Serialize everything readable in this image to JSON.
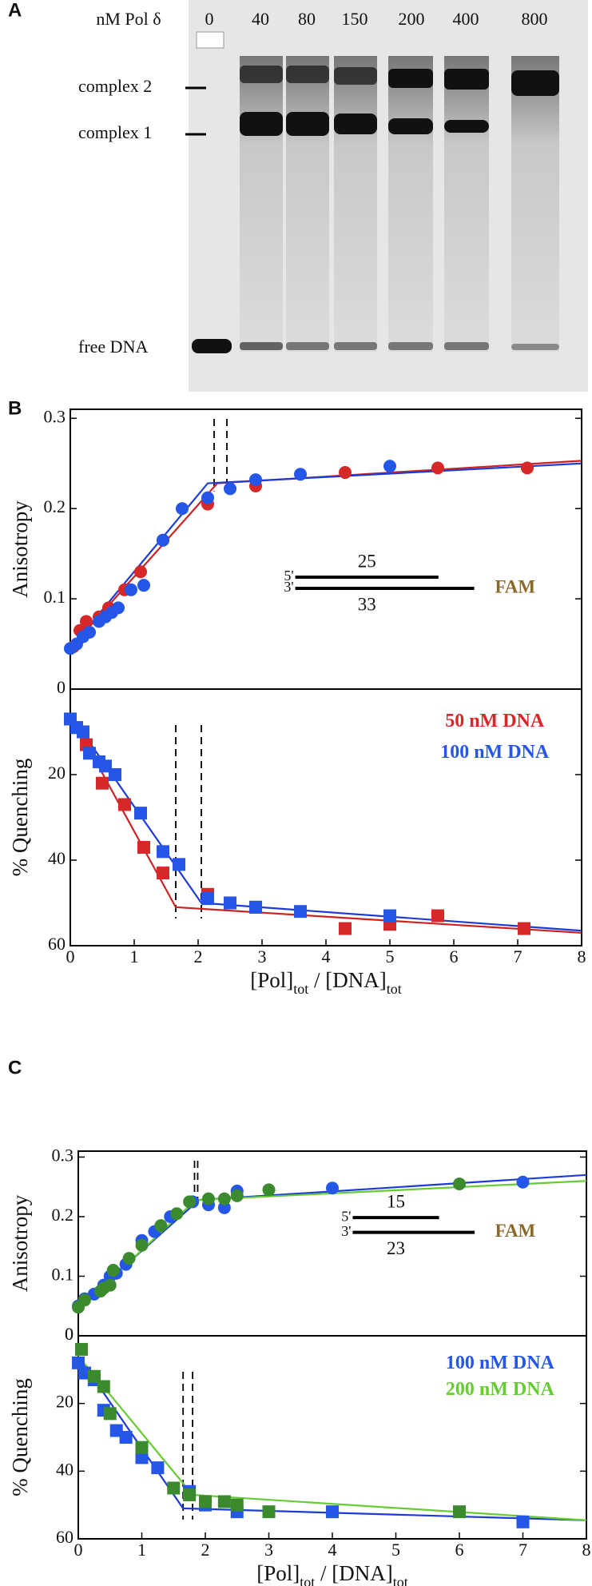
{
  "panel_a": {
    "label": "A",
    "lane_header": "nM Pol δ",
    "lanes": [
      "0",
      "40",
      "80",
      "150",
      "200",
      "400",
      "800"
    ],
    "complex_2": "complex 2",
    "complex_1": "complex 1",
    "free_dna": "free DNA"
  },
  "panel_labels": {
    "b": "B",
    "c": "C"
  },
  "chart_data": [
    {
      "type": "scatter",
      "ylabel": "Anisotropy",
      "xlim": [
        0,
        8
      ],
      "ylim": [
        0,
        0.31
      ],
      "yticks": [
        0,
        0.1,
        0.2,
        0.3
      ],
      "series": [
        {
          "color": "#d62828",
          "marker": "circle",
          "x": [
            0.05,
            0.15,
            0.25,
            0.45,
            0.6,
            0.85,
            1.1,
            1.45,
            2.15,
            2.9,
            4.3,
            5.75,
            7.15
          ],
          "values": [
            0.047,
            0.065,
            0.075,
            0.08,
            0.09,
            0.11,
            0.13,
            0.165,
            0.205,
            0.225,
            0.24,
            0.245,
            0.245
          ]
        },
        {
          "color": "#2456e8",
          "marker": "circle",
          "x": [
            0,
            0.1,
            0.2,
            0.3,
            0.45,
            0.55,
            0.65,
            0.75,
            0.95,
            1.15,
            1.45,
            1.75,
            2.15,
            2.5,
            2.9,
            3.6,
            5
          ],
          "values": [
            0.045,
            0.05,
            0.058,
            0.063,
            0.075,
            0.08,
            0.085,
            0.09,
            0.11,
            0.115,
            0.165,
            0.2,
            0.212,
            0.222,
            0.232,
            0.238,
            0.247
          ]
        }
      ],
      "fits": [
        {
          "color": "#cc2222",
          "x": [
            0,
            2.3,
            8
          ],
          "y": [
            0.045,
            0.228,
            0.253
          ]
        },
        {
          "color": "#1f3bd6",
          "x": [
            0,
            2.15,
            8
          ],
          "y": [
            0.045,
            0.228,
            0.25
          ]
        }
      ],
      "dashed_x": [
        2.25,
        2.45
      ],
      "inset": {
        "top_end": "5'",
        "top_length": "25",
        "bottom_end": "3'",
        "bottom_length": "33",
        "label": "FAM",
        "label_color": "#8a6a2a"
      }
    },
    {
      "type": "scatter",
      "ylabel": "% Quenching",
      "xlabel": [
        "[Pol]",
        "tot",
        " / [DNA]",
        "tot"
      ],
      "xlim": [
        0,
        8
      ],
      "ylim": [
        0,
        60
      ],
      "y_inverted": true,
      "yticks": [
        20,
        40,
        60
      ],
      "xticks": [
        0,
        1,
        2,
        3,
        4,
        5,
        6,
        7,
        8
      ],
      "legend": "upper right",
      "series": [
        {
          "name": "50 nM DNA",
          "color": "#d62828",
          "marker": "square",
          "x": [
            0,
            0.1,
            0.25,
            0.5,
            0.85,
            1.15,
            1.45,
            2.15,
            2.9,
            4.3,
            5,
            5.75,
            7.1
          ],
          "values": [
            7,
            9,
            13,
            22,
            27,
            37,
            43,
            48,
            51,
            56,
            55,
            53,
            56
          ]
        },
        {
          "name": "100 nM DNA",
          "color": "#2456e8",
          "marker": "square",
          "x": [
            0,
            0.1,
            0.2,
            0.3,
            0.45,
            0.55,
            0.7,
            1.1,
            1.45,
            1.7,
            2.15,
            2.5,
            2.9,
            3.6,
            5
          ],
          "values": [
            7,
            9,
            10,
            15,
            17,
            18,
            20,
            29,
            38,
            41,
            49,
            50,
            51,
            52,
            53
          ]
        }
      ],
      "fits": [
        {
          "color": "#cc2222",
          "x": [
            0,
            1.65,
            8
          ],
          "y": [
            6,
            51,
            57
          ]
        },
        {
          "color": "#1f3bd6",
          "x": [
            0,
            2.05,
            8
          ],
          "y": [
            6,
            50,
            56.5
          ]
        }
      ],
      "dashed_x": [
        1.65,
        2.05
      ]
    },
    {
      "type": "scatter",
      "ylabel": "Anisotropy",
      "xlim": [
        0,
        8
      ],
      "ylim": [
        0,
        0.31
      ],
      "yticks": [
        0,
        0.1,
        0.2,
        0.3
      ],
      "series": [
        {
          "color": "#2456e8",
          "marker": "circle",
          "x": [
            0,
            0.1,
            0.25,
            0.4,
            0.5,
            0.6,
            0.75,
            1,
            1.2,
            1.45,
            1.8,
            2.05,
            2.3,
            2.5,
            4,
            7
          ],
          "values": [
            0.05,
            0.062,
            0.07,
            0.085,
            0.1,
            0.105,
            0.12,
            0.16,
            0.175,
            0.2,
            0.225,
            0.22,
            0.215,
            0.243,
            0.248,
            0.258
          ]
        },
        {
          "color": "#3b8a2e",
          "marker": "circle",
          "x": [
            0,
            0.1,
            0.35,
            0.4,
            0.5,
            0.55,
            0.8,
            1,
            1.3,
            1.55,
            1.75,
            2.05,
            2.3,
            2.5,
            3,
            6
          ],
          "values": [
            0.048,
            0.06,
            0.075,
            0.08,
            0.085,
            0.11,
            0.13,
            0.152,
            0.185,
            0.205,
            0.225,
            0.23,
            0.23,
            0.235,
            0.245,
            0.255
          ]
        }
      ],
      "fits": [
        {
          "color": "#1f3bd6",
          "x": [
            0,
            1.9,
            8
          ],
          "y": [
            0.048,
            0.228,
            0.27
          ]
        },
        {
          "color": "#66cc33",
          "x": [
            0,
            1.85,
            8
          ],
          "y": [
            0.045,
            0.228,
            0.26
          ]
        }
      ],
      "dashed_x": [
        1.83,
        1.88
      ],
      "inset": {
        "top_end": "5'",
        "top_length": "15",
        "bottom_end": "3'",
        "bottom_length": "23",
        "label": "FAM",
        "label_color": "#8a6a2a"
      }
    },
    {
      "type": "scatter",
      "ylabel": "% Quenching",
      "xlabel": [
        "[Pol]",
        "tot",
        " / [DNA]",
        "tot"
      ],
      "xlim": [
        0,
        8
      ],
      "ylim": [
        0,
        60
      ],
      "y_inverted": true,
      "yticks": [
        0,
        20,
        40,
        60
      ],
      "xticks": [
        0,
        1,
        2,
        3,
        4,
        5,
        6,
        7,
        8
      ],
      "legend": "upper right",
      "series": [
        {
          "name": "100 nM DNA",
          "color": "#2456e8",
          "marker": "square",
          "x": [
            0,
            0.1,
            0.25,
            0.4,
            0.6,
            0.75,
            1,
            1.25,
            1.75,
            2,
            2.5,
            4,
            7
          ],
          "values": [
            8,
            11,
            13,
            22,
            28,
            30,
            36,
            39,
            46,
            50,
            52,
            52,
            55
          ]
        },
        {
          "name": "200 nM DNA",
          "color": "#3b8a2e",
          "marker": "square",
          "legend_color": "#66cc33",
          "x": [
            0.05,
            0.25,
            0.4,
            0.5,
            1,
            1.5,
            1.75,
            2,
            2.3,
            2.5,
            3,
            6
          ],
          "values": [
            4,
            12,
            15,
            23,
            33,
            45,
            47,
            49,
            49,
            50,
            52,
            52
          ]
        }
      ],
      "fits": [
        {
          "color": "#1f3bd6",
          "x": [
            0,
            1.65,
            8
          ],
          "y": [
            6,
            51,
            54.5
          ]
        },
        {
          "color": "#66cc33",
          "x": [
            0,
            1.8,
            8
          ],
          "y": [
            6,
            47,
            54.5
          ]
        }
      ],
      "dashed_x": [
        1.65,
        1.8
      ]
    }
  ]
}
